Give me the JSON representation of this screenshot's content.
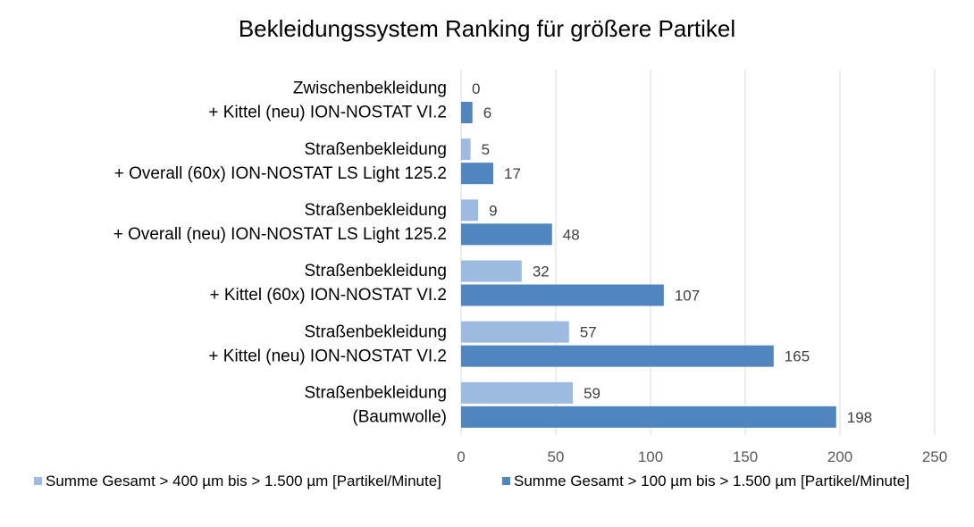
{
  "chart_data": {
    "type": "bar",
    "orientation": "horizontal",
    "title": "Bekleidungssystem Ranking für größere Partikel",
    "categories": [
      [
        "Zwischenbekleidung",
        "+ Kittel (neu) ION-NOSTAT VI.2"
      ],
      [
        "Straßenbekleidung",
        "+ Overall (60x) ION-NOSTAT LS Light 125.2"
      ],
      [
        "Straßenbekleidung",
        "+ Overall (neu) ION-NOSTAT LS Light 125.2"
      ],
      [
        "Straßenbekleidung",
        "+ Kittel (60x) ION-NOSTAT VI.2"
      ],
      [
        "Straßenbekleidung",
        "+ Kittel (neu) ION-NOSTAT VI.2"
      ],
      [
        "Straßenbekleidung",
        "(Baumwolle)"
      ]
    ],
    "series": [
      {
        "name": "Summe Gesamt > 400 µm bis > 1.500 µm [Partikel/Minute]",
        "color": "#9dbbe0",
        "values": [
          0,
          5,
          9,
          32,
          57,
          59
        ]
      },
      {
        "name": "Summe Gesamt > 100 µm bis > 1.500 µm [Partikel/Minute]",
        "color": "#4f86c0",
        "values": [
          6,
          17,
          48,
          107,
          165,
          198
        ]
      }
    ],
    "xlim": [
      0,
      250
    ],
    "xticks": [
      0,
      50,
      100,
      150,
      200,
      250
    ],
    "xlabel": "",
    "ylabel": "",
    "grid": true,
    "legend": "bottom"
  }
}
